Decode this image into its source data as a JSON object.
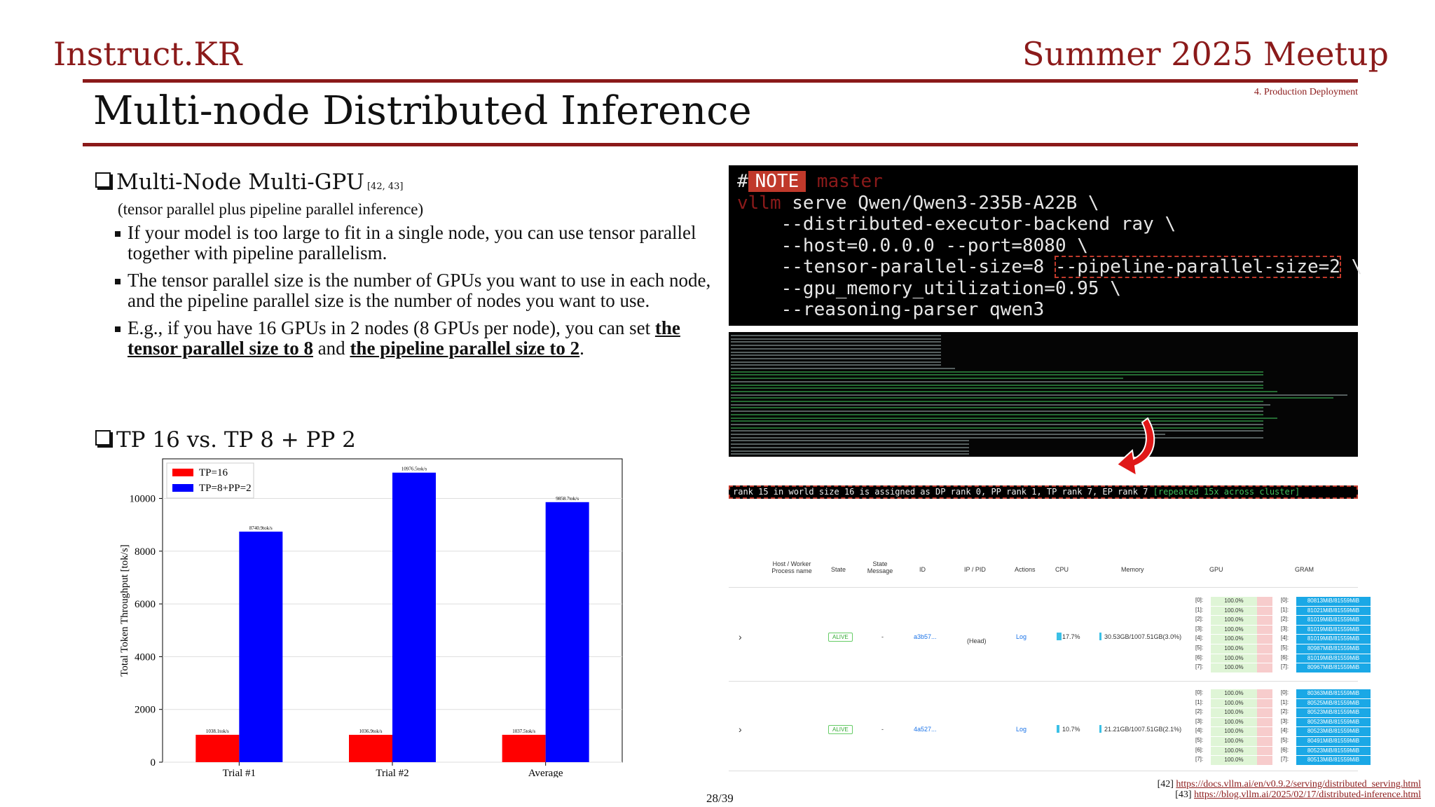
{
  "header": {
    "brand": "Instruct.KR",
    "event": "Summer 2025 Meetup",
    "section": "4. Production Deployment",
    "title": "Multi-node Distributed Inference"
  },
  "left": {
    "bullet1": {
      "heading": "Multi-Node Multi-GPU",
      "cite": "[42, 43]",
      "subtitle": "(tensor parallel plus pipeline parallel inference)"
    },
    "items": [
      "If your model is too large to fit in a single node, you can use tensor parallel together with pipeline parallelism.",
      "The tensor parallel size is the number of GPUs you want to use in each node, and the pipeline parallel size is the number of nodes you want to use."
    ],
    "item3": {
      "prefix": "E.g., if you have 16 GPUs in 2 nodes (8 GPUs per node), you can set ",
      "u1": "the tensor parallel size to 8",
      "mid": " and ",
      "u2": "the pipeline parallel size to 2",
      "end": "."
    },
    "bullet2": {
      "heading": "TP 16 vs. TP 8 + PP 2"
    }
  },
  "chart_data": {
    "type": "bar",
    "categories": [
      "Trial #1",
      "Trial #2",
      "Average"
    ],
    "series": [
      {
        "name": "TP=16",
        "color": "#ff0000",
        "values": [
          1038.1,
          1036.9,
          1037.5
        ],
        "labels": [
          "1038.1tok/s",
          "1036.9tok/s",
          "1037.5tok/s"
        ]
      },
      {
        "name": "TP=8+PP=2",
        "color": "#0000ff",
        "values": [
          8740.9,
          10976.5,
          9858.7
        ],
        "labels": [
          "8740.9tok/s",
          "10976.5tok/s",
          "9858.7tok/s"
        ]
      }
    ],
    "ylabel": "Total Token Throughput [tok/s]",
    "yticks": [
      0,
      2000,
      4000,
      6000,
      8000,
      10000
    ],
    "ylim": [
      0,
      11500
    ],
    "grid": true,
    "legend": "top-left"
  },
  "terminal": {
    "hash": "#",
    "note": "NOTE",
    "note_rest": " master",
    "cmd": "vllm",
    "line1_rest": " serve Qwen/Qwen3-235B-A22B \\",
    "line2": "    --distributed-executor-backend ray \\",
    "line3": "    --host=0.0.0.0 --port=8080 \\",
    "line4a": "    --tensor-parallel-size=8 ",
    "line4b": "--pipeline-parallel-size=2",
    "line4c": " \\",
    "line5": "    --gpu_memory_utilization=0.95 \\",
    "line6": "    --reasoning-parser qwen3"
  },
  "highlight_log": {
    "text": "rank 15 in world size 16 is assigned as DP rank 0, PP rank 1, TP rank 7, EP rank 7 ",
    "green": "[repeated 15x across cluster]"
  },
  "cluster": {
    "headers": [
      "Host / Worker Process name",
      "State",
      "State Message",
      "ID",
      "IP / PID",
      "Actions",
      "CPU",
      "Memory",
      "GPU",
      "GRAM"
    ],
    "rows": [
      {
        "state": "ALIVE",
        "msg": "-",
        "id": "a3b57...",
        "ip": "(Head)",
        "action": "Log",
        "cpu": "17.7%",
        "cpu_frac": 0.177,
        "mem": "30.53GB/1007.51GB(3.0%)",
        "gpu": [
          "100.0%",
          "100.0%",
          "100.0%",
          "100.0%",
          "100.0%",
          "100.0%",
          "100.0%",
          "100.0%"
        ],
        "gram": [
          "80813MiB/81559MiB",
          "81021MiB/81559MiB",
          "81019MiB/81559MiB",
          "81019MiB/81559MiB",
          "81019MiB/81559MiB",
          "80987MiB/81559MiB",
          "81019MiB/81559MiB",
          "80967MiB/81559MiB"
        ]
      },
      {
        "state": "ALIVE",
        "msg": "-",
        "id": "4a527...",
        "ip": "",
        "action": "Log",
        "cpu": "10.7%",
        "cpu_frac": 0.107,
        "mem": "21.21GB/1007.51GB(2.1%)",
        "gpu": [
          "100.0%",
          "100.0%",
          "100.0%",
          "100.0%",
          "100.0%",
          "100.0%",
          "100.0%",
          "100.0%"
        ],
        "gram": [
          "80363MiB/81559MiB",
          "80525MiB/81559MiB",
          "80523MiB/81559MiB",
          "80523MiB/81559MiB",
          "80523MiB/81559MiB",
          "80491MiB/81559MiB",
          "80523MiB/81559MiB",
          "80513MiB/81559MiB"
        ]
      }
    ],
    "gpu_index_labels": [
      "[0]:",
      "[1]:",
      "[2]:",
      "[3]:",
      "[4]:",
      "[5]:",
      "[6]:",
      "[7]:"
    ]
  },
  "refs": [
    {
      "num": "[42]",
      "url": "https://docs.vllm.ai/en/v0.9.2/serving/distributed_serving.html"
    },
    {
      "num": "[43]",
      "url": "https://blog.vllm.ai/2025/02/17/distributed-inference.html"
    }
  ],
  "page_number": "28/39"
}
